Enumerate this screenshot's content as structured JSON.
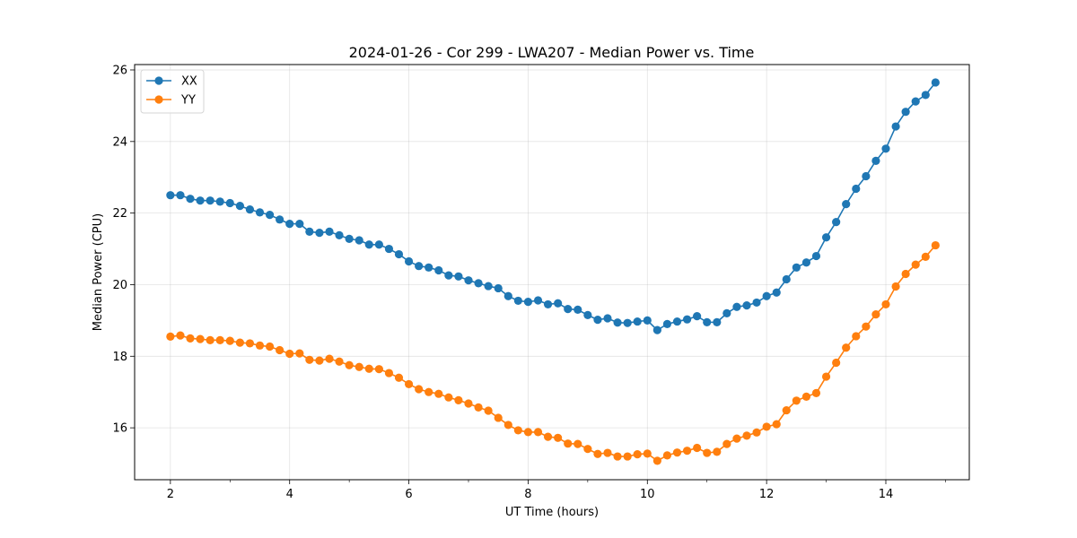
{
  "chart_data": {
    "type": "line",
    "title": "2024-01-26 - Cor 299 - LWA207 - Median Power vs. Time",
    "xlabel": "UT Time (hours)",
    "ylabel": "Median Power (CPU)",
    "xlim": [
      1.4,
      15.4
    ],
    "ylim": [
      14.55,
      26.15
    ],
    "xticks": [
      2,
      4,
      6,
      8,
      10,
      12,
      14
    ],
    "yticks": [
      16,
      18,
      20,
      22,
      24,
      26
    ],
    "grid": true,
    "legend_position": "top-left",
    "x": [
      2.0,
      2.167,
      2.333,
      2.5,
      2.667,
      2.833,
      3.0,
      3.167,
      3.333,
      3.5,
      3.667,
      3.833,
      4.0,
      4.167,
      4.333,
      4.5,
      4.667,
      4.833,
      5.0,
      5.167,
      5.333,
      5.5,
      5.667,
      5.833,
      6.0,
      6.167,
      6.333,
      6.5,
      6.667,
      6.833,
      7.0,
      7.167,
      7.333,
      7.5,
      7.667,
      7.833,
      8.0,
      8.167,
      8.333,
      8.5,
      8.667,
      8.833,
      9.0,
      9.167,
      9.333,
      9.5,
      9.667,
      9.833,
      10.0,
      10.167,
      10.333,
      10.5,
      10.667,
      10.833,
      11.0,
      11.167,
      11.333,
      11.5,
      11.667,
      11.833,
      12.0,
      12.167,
      12.333,
      12.5,
      12.667,
      12.833,
      13.0,
      13.167,
      13.333,
      13.5,
      13.667,
      13.833,
      14.0,
      14.167,
      14.333,
      14.5,
      14.667,
      14.833
    ],
    "series": [
      {
        "name": "XX",
        "color": "#1f77b4",
        "values": [
          22.5,
          22.5,
          22.4,
          22.35,
          22.35,
          22.32,
          22.28,
          22.2,
          22.1,
          22.02,
          21.95,
          21.82,
          21.7,
          21.7,
          21.48,
          21.45,
          21.48,
          21.38,
          21.28,
          21.24,
          21.12,
          21.12,
          21.0,
          20.85,
          20.65,
          20.52,
          20.48,
          20.4,
          20.26,
          20.23,
          20.12,
          20.04,
          19.96,
          19.9,
          19.68,
          19.55,
          19.52,
          19.56,
          19.45,
          19.48,
          19.32,
          19.3,
          19.15,
          19.02,
          19.06,
          18.94,
          18.93,
          18.97,
          19.0,
          18.73,
          18.9,
          18.97,
          19.03,
          19.12,
          18.95,
          18.95,
          19.2,
          19.38,
          19.42,
          19.5,
          19.68,
          19.78,
          20.15,
          20.48,
          20.62,
          20.8,
          21.32,
          21.75,
          22.25,
          22.68,
          23.03,
          23.46,
          23.8,
          24.42,
          24.83,
          25.12,
          25.3,
          25.65
        ]
      },
      {
        "name": "YY",
        "color": "#ff7f0e",
        "values": [
          18.55,
          18.58,
          18.5,
          18.48,
          18.45,
          18.45,
          18.43,
          18.38,
          18.36,
          18.3,
          18.27,
          18.17,
          18.07,
          18.08,
          17.9,
          17.88,
          17.93,
          17.85,
          17.75,
          17.7,
          17.65,
          17.64,
          17.53,
          17.4,
          17.22,
          17.08,
          17.0,
          16.95,
          16.85,
          16.77,
          16.68,
          16.57,
          16.48,
          16.28,
          16.08,
          15.93,
          15.88,
          15.88,
          15.75,
          15.72,
          15.56,
          15.55,
          15.41,
          15.27,
          15.3,
          15.2,
          15.2,
          15.26,
          15.28,
          15.08,
          15.23,
          15.31,
          15.36,
          15.44,
          15.3,
          15.33,
          15.55,
          15.7,
          15.78,
          15.87,
          16.03,
          16.1,
          16.49,
          16.76,
          16.87,
          16.97,
          17.43,
          17.82,
          18.24,
          18.56,
          18.83,
          19.17,
          19.45,
          19.95,
          20.3,
          20.56,
          20.78,
          21.1
        ]
      }
    ]
  }
}
